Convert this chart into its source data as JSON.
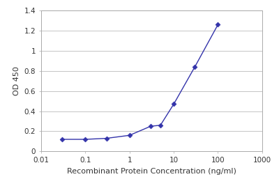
{
  "x_values": [
    0.03,
    0.1,
    0.3,
    1,
    3,
    5,
    10,
    30,
    100
  ],
  "y_values": [
    0.12,
    0.12,
    0.13,
    0.16,
    0.25,
    0.26,
    0.47,
    0.84,
    1.26
  ],
  "line_color": "#3333aa",
  "marker_color": "#3333aa",
  "marker_style": "D",
  "marker_size": 3.5,
  "line_width": 1.0,
  "xlabel": "Recombinant Protein Concentration (ng/ml)",
  "ylabel": "OD 450",
  "xlim": [
    0.01,
    1000
  ],
  "ylim": [
    0,
    1.4
  ],
  "yticks": [
    0,
    0.2,
    0.4,
    0.6,
    0.8,
    1.0,
    1.2,
    1.4
  ],
  "ytick_labels": [
    "0",
    "0.2",
    "0.4",
    "0.6",
    "0.8",
    "1",
    "1.2",
    "1.4"
  ],
  "xticks": [
    0.01,
    0.1,
    1,
    10,
    100,
    1000
  ],
  "xtick_labels": [
    "0.01",
    "0.1",
    "1",
    "10",
    "100",
    "1000"
  ],
  "background_color": "#ffffff",
  "grid_color": "#bbbbbb",
  "axis_label_fontsize": 8,
  "tick_fontsize": 7.5,
  "label_color": "#333333",
  "spine_color": "#aaaaaa"
}
